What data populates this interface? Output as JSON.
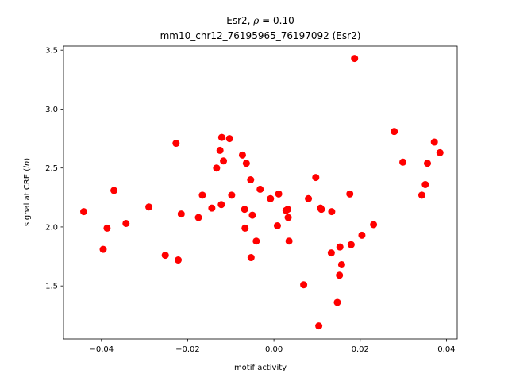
{
  "chart_data": {
    "type": "scatter",
    "title_line1": "Esr2, ρ = 0.10",
    "title_line2": "mm10_chr12_76195965_76197092 (Esr2)",
    "xlabel": "motif activity",
    "ylabel": "signal at CRE (ln)",
    "xlim": [
      -0.0488,
      0.0425
    ],
    "ylim": [
      1.05,
      3.535
    ],
    "x_ticks": [
      -0.04,
      -0.02,
      0.0,
      0.02,
      0.04
    ],
    "x_tick_labels": [
      "−0.04",
      "−0.02",
      "0.00",
      "0.02",
      "0.04"
    ],
    "y_ticks": [
      1.5,
      2.0,
      2.5,
      3.0,
      3.5
    ],
    "y_tick_labels": [
      "1.5",
      "2.0",
      "2.5",
      "3.0",
      "3.5"
    ],
    "marker_color": "#ff0000",
    "grid": false,
    "points": [
      {
        "x": -0.0441,
        "y": 2.13
      },
      {
        "x": -0.0396,
        "y": 1.81
      },
      {
        "x": -0.0387,
        "y": 1.99
      },
      {
        "x": -0.0371,
        "y": 2.31
      },
      {
        "x": -0.0343,
        "y": 2.03
      },
      {
        "x": -0.029,
        "y": 2.17
      },
      {
        "x": -0.0252,
        "y": 1.76
      },
      {
        "x": -0.0227,
        "y": 2.71
      },
      {
        "x": -0.0222,
        "y": 1.72
      },
      {
        "x": -0.0215,
        "y": 2.11
      },
      {
        "x": -0.0175,
        "y": 2.08
      },
      {
        "x": -0.0166,
        "y": 2.27
      },
      {
        "x": -0.0144,
        "y": 2.16
      },
      {
        "x": -0.0133,
        "y": 2.5
      },
      {
        "x": -0.0125,
        "y": 2.65
      },
      {
        "x": -0.0122,
        "y": 2.19
      },
      {
        "x": -0.0121,
        "y": 2.76
      },
      {
        "x": -0.0117,
        "y": 2.56
      },
      {
        "x": -0.0103,
        "y": 2.75
      },
      {
        "x": -0.0098,
        "y": 2.27
      },
      {
        "x": -0.0073,
        "y": 2.61
      },
      {
        "x": -0.0068,
        "y": 2.15
      },
      {
        "x": -0.0067,
        "y": 1.99
      },
      {
        "x": -0.0064,
        "y": 2.54
      },
      {
        "x": -0.0054,
        "y": 2.4
      },
      {
        "x": -0.0053,
        "y": 1.74
      },
      {
        "x": -0.005,
        "y": 2.1
      },
      {
        "x": -0.0041,
        "y": 1.88
      },
      {
        "x": -0.0032,
        "y": 2.32
      },
      {
        "x": -0.0008,
        "y": 2.24
      },
      {
        "x": 0.0008,
        "y": 2.01
      },
      {
        "x": 0.0011,
        "y": 2.28
      },
      {
        "x": 0.0028,
        "y": 2.14
      },
      {
        "x": 0.0032,
        "y": 2.15
      },
      {
        "x": 0.0033,
        "y": 2.08
      },
      {
        "x": 0.0035,
        "y": 1.88
      },
      {
        "x": 0.0069,
        "y": 1.51
      },
      {
        "x": 0.008,
        "y": 2.24
      },
      {
        "x": 0.0097,
        "y": 2.42
      },
      {
        "x": 0.0104,
        "y": 1.16
      },
      {
        "x": 0.0108,
        "y": 2.16
      },
      {
        "x": 0.011,
        "y": 2.15
      },
      {
        "x": 0.0133,
        "y": 1.78
      },
      {
        "x": 0.0134,
        "y": 2.13
      },
      {
        "x": 0.0147,
        "y": 1.36
      },
      {
        "x": 0.0152,
        "y": 1.59
      },
      {
        "x": 0.0153,
        "y": 1.83
      },
      {
        "x": 0.0157,
        "y": 1.68
      },
      {
        "x": 0.0176,
        "y": 2.28
      },
      {
        "x": 0.0179,
        "y": 1.85
      },
      {
        "x": 0.0187,
        "y": 3.43
      },
      {
        "x": 0.0204,
        "y": 1.93
      },
      {
        "x": 0.0231,
        "y": 2.02
      },
      {
        "x": 0.0279,
        "y": 2.81
      },
      {
        "x": 0.0299,
        "y": 2.55
      },
      {
        "x": 0.0343,
        "y": 2.27
      },
      {
        "x": 0.0351,
        "y": 2.36
      },
      {
        "x": 0.0356,
        "y": 2.54
      },
      {
        "x": 0.0372,
        "y": 2.72
      },
      {
        "x": 0.0385,
        "y": 2.63
      }
    ]
  }
}
